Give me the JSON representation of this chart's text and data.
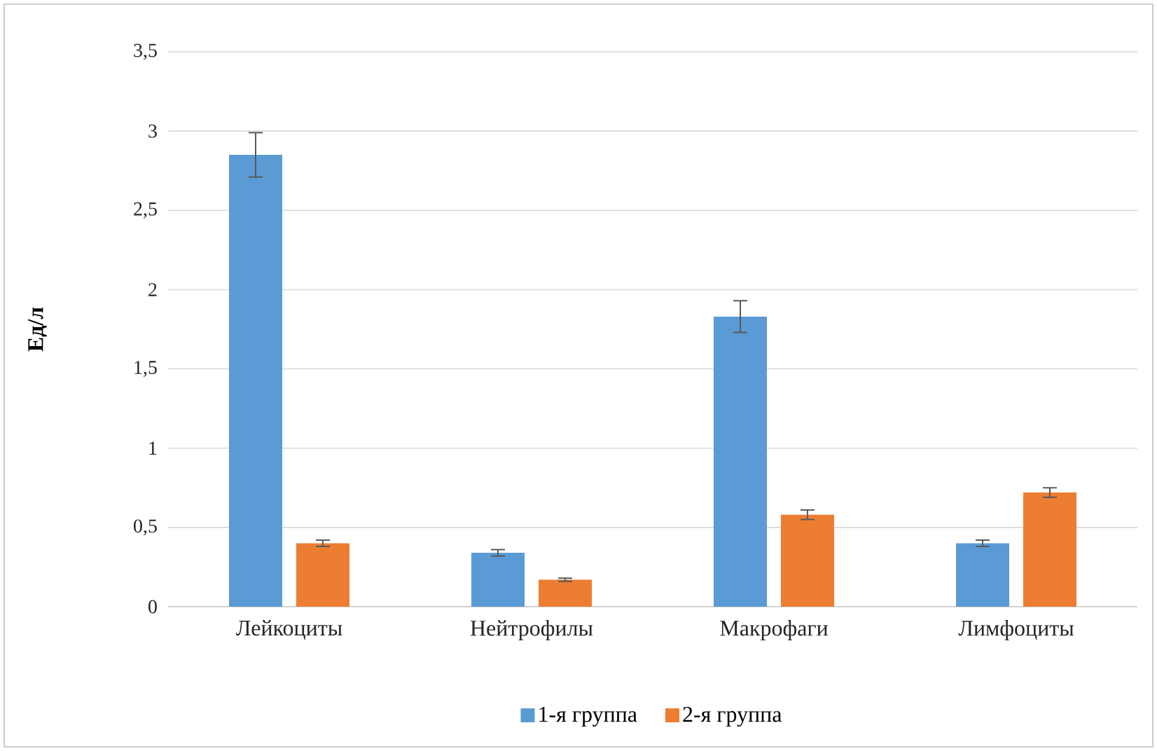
{
  "chart_data": {
    "type": "bar",
    "ylabel": "Ед/л",
    "categories": [
      "Лейкоциты",
      "Нейтрофилы",
      "Макрофаги",
      "Лимфоциты"
    ],
    "series": [
      {
        "name": "1-я группа",
        "color": "#5b9bd5",
        "values": [
          2.85,
          0.34,
          1.83,
          0.4
        ],
        "errors": [
          0.14,
          0.02,
          0.1,
          0.02
        ]
      },
      {
        "name": "2-я группа",
        "color": "#ed7d31",
        "values": [
          0.4,
          0.17,
          0.58,
          0.72
        ],
        "errors": [
          0.02,
          0.01,
          0.03,
          0.03
        ]
      }
    ],
    "ylim": [
      0,
      3.5
    ],
    "yticks": [
      0,
      {
        "value": 0.5,
        "label": "0,5"
      },
      1,
      {
        "value": 1.5,
        "label": "1,5"
      },
      2,
      {
        "value": 2.5,
        "label": "2,5"
      },
      3,
      {
        "value": 3.5,
        "label": "3,5"
      }
    ],
    "grid": "y",
    "legend": "bottom"
  }
}
